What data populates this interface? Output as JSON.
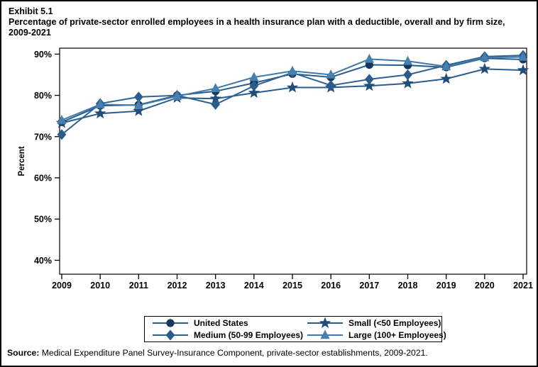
{
  "page": {
    "exhibit": "Exhibit 5.1",
    "title": "Percentage of private-sector enrolled employees in a health insurance plan with a deductible, overall and by firm size, 2009-2021",
    "source_label": "Source:",
    "source_text": " Medical Expenditure Panel Survey-Insurance Component, private-sector establishments, 2009-2021."
  },
  "chart_data": {
    "type": "line",
    "title": "Percentage of private-sector enrolled employees in a health insurance plan with a deductible, overall and by firm size, 2009-2021",
    "xlabel": "",
    "ylabel": "Percent",
    "x": [
      2009,
      2010,
      2011,
      2012,
      2013,
      2014,
      2015,
      2016,
      2017,
      2018,
      2019,
      2020,
      2021
    ],
    "ylim": [
      40,
      90
    ],
    "yticks": [
      90,
      80,
      70,
      60,
      50,
      40
    ],
    "ytick_suffix": "%",
    "grid": false,
    "legend_position": "bottom-box",
    "series": [
      {
        "name": "United States",
        "marker": "circle",
        "color": "#16365c",
        "line_color": "#2a5d8f",
        "values": [
          73.5,
          77.5,
          77.7,
          80.0,
          81.0,
          83.0,
          85.2,
          84.4,
          87.4,
          87.3,
          86.8,
          89.0,
          88.7
        ]
      },
      {
        "name": "Small (<50 Employees)",
        "marker": "star",
        "color": "#1f4e79",
        "line_color": "#2a5d8f",
        "values": [
          73.3,
          75.6,
          76.2,
          79.4,
          79.2,
          80.6,
          81.9,
          81.9,
          82.3,
          82.9,
          84.0,
          86.4,
          86.1
        ]
      },
      {
        "name": "Medium (50-99 Employees)",
        "marker": "diamond",
        "color": "#2b5c8c",
        "line_color": "#2f6294",
        "values": [
          70.5,
          78.0,
          79.6,
          80.0,
          77.8,
          82.3,
          85.5,
          82.4,
          83.9,
          85.0,
          87.3,
          89.4,
          89.7
        ]
      },
      {
        "name": "Large (100+ Employees)",
        "marker": "triangle",
        "color": "#4780af",
        "line_color": "#4178a8",
        "values": [
          74.0,
          77.8,
          77.6,
          79.8,
          81.7,
          84.4,
          85.9,
          85.0,
          88.8,
          88.3,
          87.0,
          89.2,
          89.3
        ]
      }
    ]
  }
}
